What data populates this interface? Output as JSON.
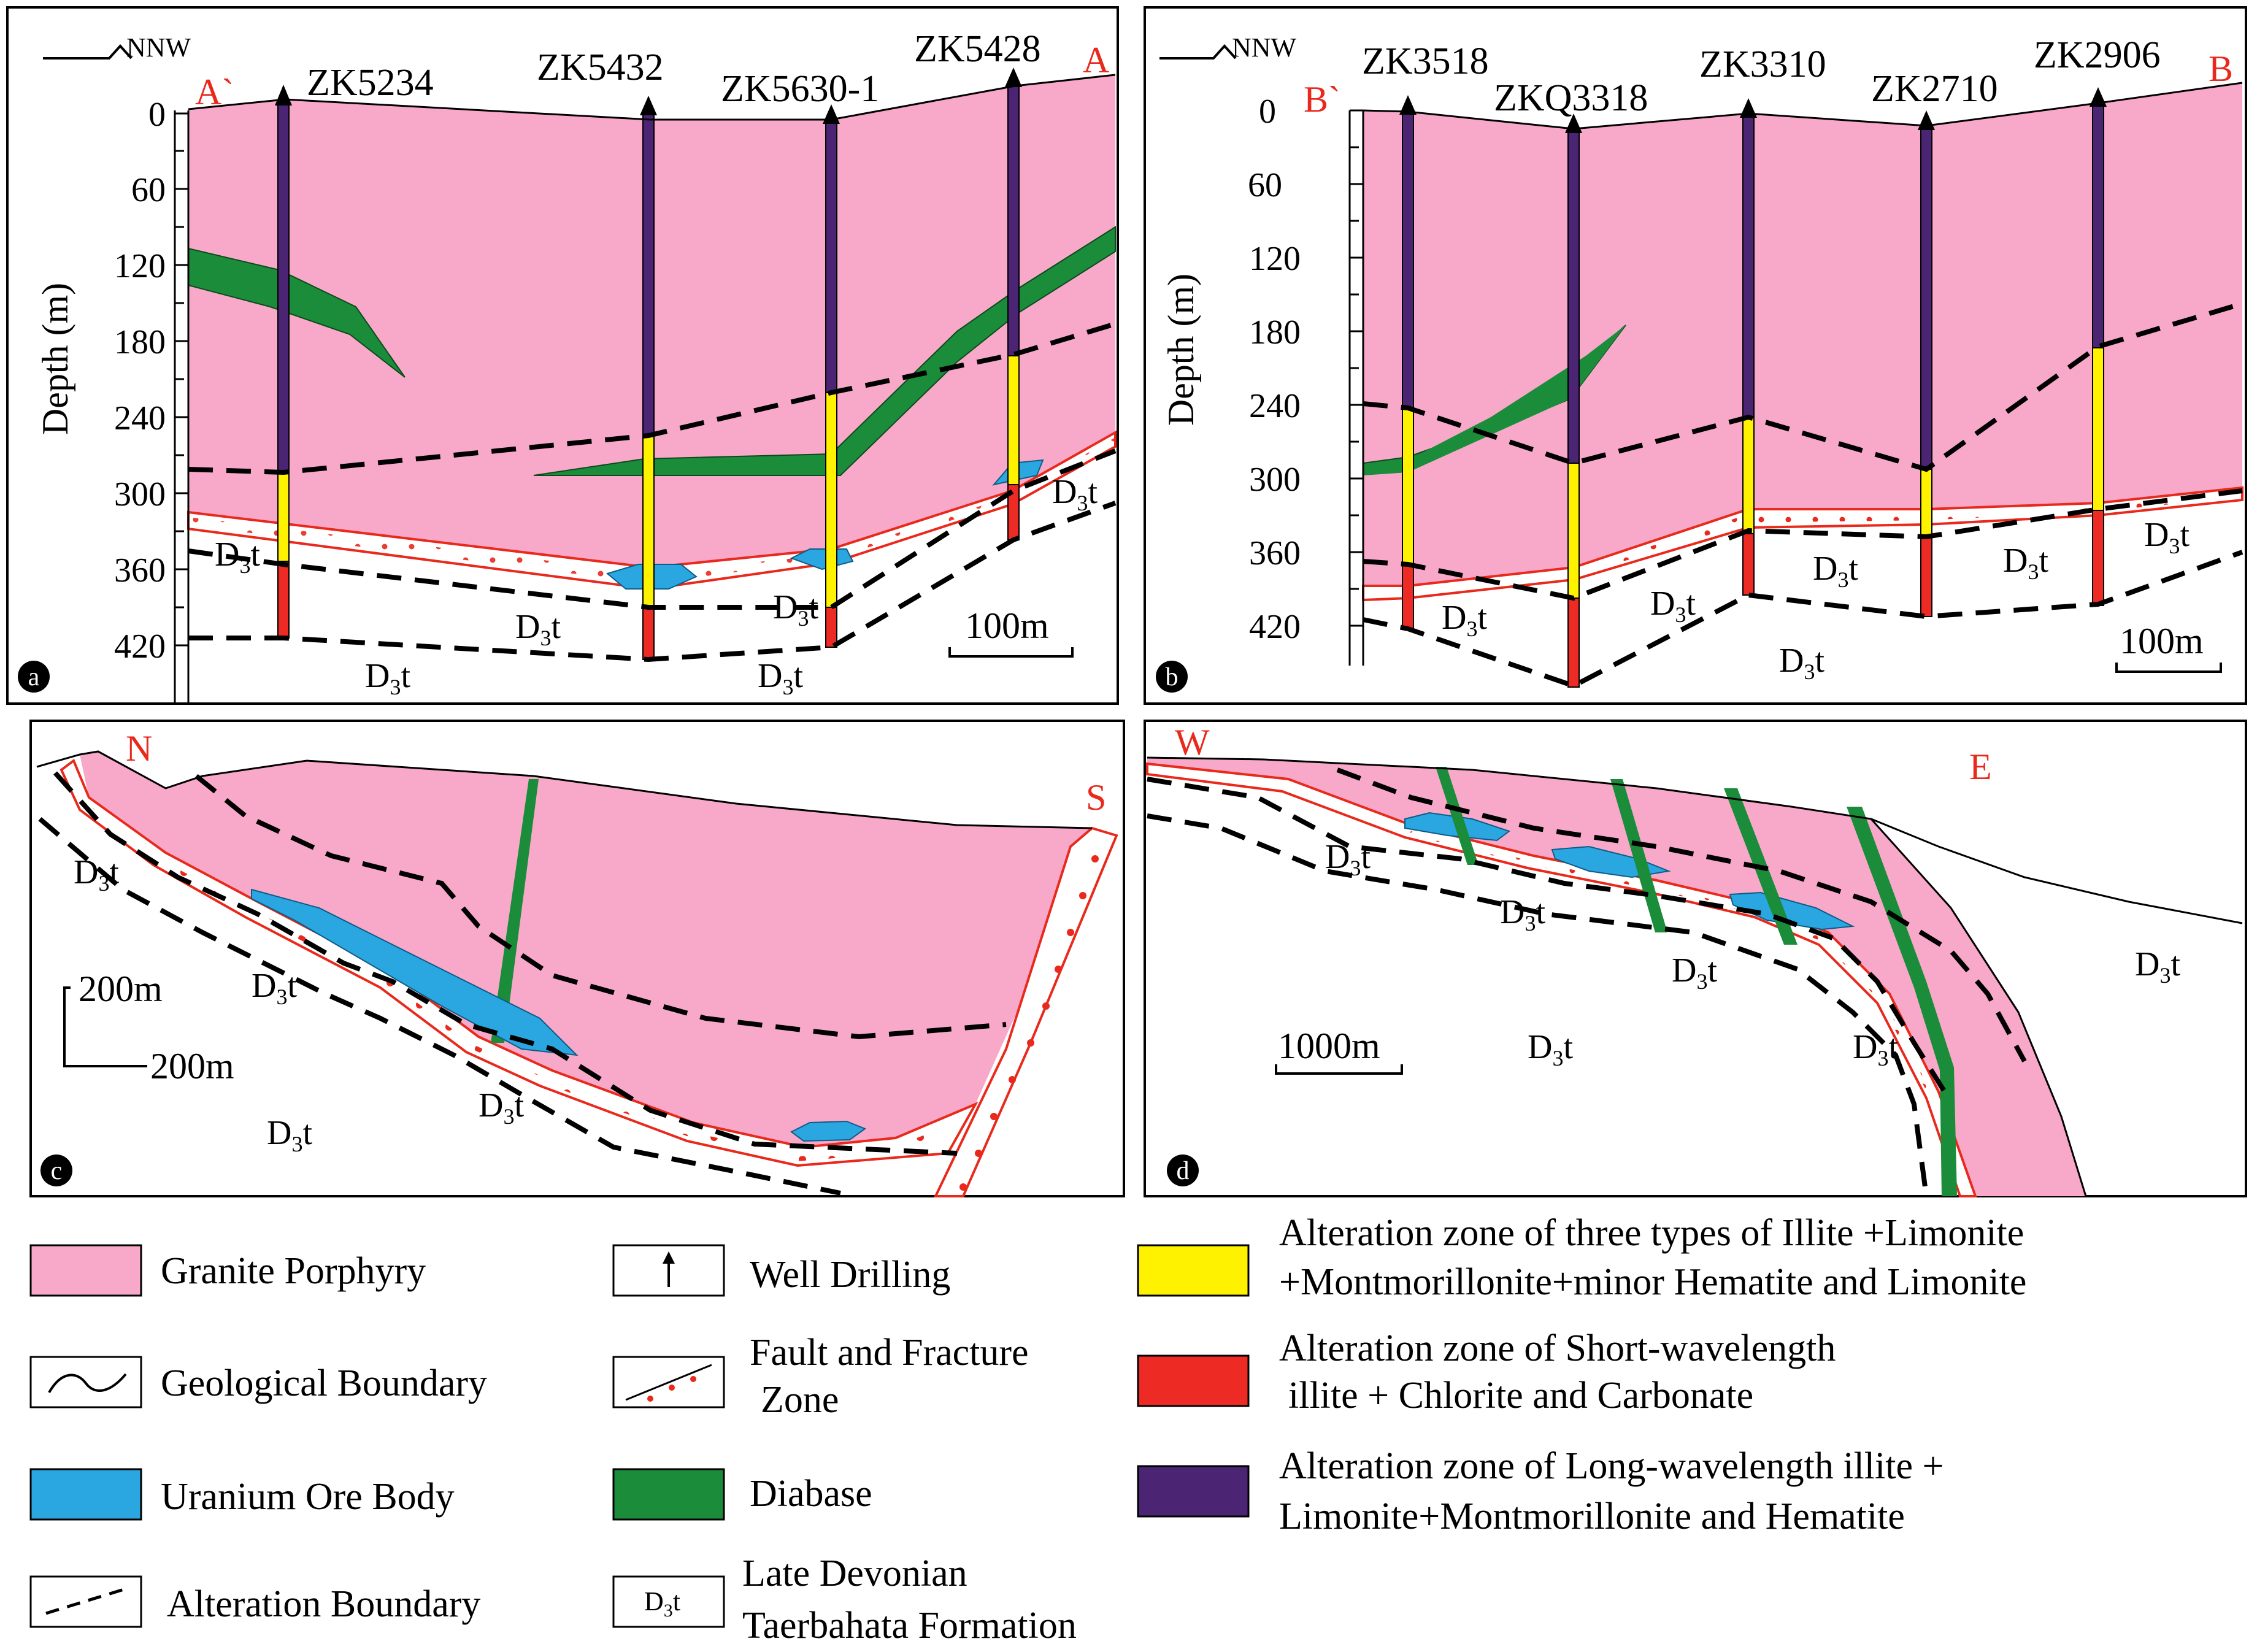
{
  "colors": {
    "granite": "#f8a8c8",
    "diabase": "#1a8c3a",
    "uranium": "#2aa6e0",
    "yellow": "#fff200",
    "red_zone": "#ed2a24",
    "purple_zone": "#4b2574",
    "fault_red": "#e8291c"
  },
  "panel_a": {
    "badge": "a",
    "orientation": "NNW",
    "start_label": "A`",
    "end_label": "A",
    "axis_title": "Depth (m)",
    "ticks": [
      "0",
      "60",
      "120",
      "180",
      "240",
      "300",
      "360",
      "420"
    ],
    "wells": [
      "ZK5234",
      "ZK5432",
      "ZK5630-1",
      "ZK5428"
    ],
    "scale": "100m",
    "formation": "D",
    "formation_sub": "3",
    "formation_suffix": "t"
  },
  "panel_b": {
    "badge": "b",
    "orientation": "NNW",
    "start_label": "B`",
    "end_label": "B",
    "axis_title": "Depth (m)",
    "ticks": [
      "0",
      "60",
      "120",
      "180",
      "240",
      "300",
      "360",
      "420"
    ],
    "wells": [
      "ZK3518",
      "ZKQ3318",
      "ZK3310",
      "ZK2710",
      "ZK2906"
    ],
    "scale": "100m"
  },
  "panel_c": {
    "badge": "c",
    "start_label": "N",
    "end_label": "S",
    "scale_v": "200m",
    "scale_h": "200m"
  },
  "panel_d": {
    "badge": "d",
    "start_label": "W",
    "end_label": "E",
    "scale": "1000m"
  },
  "legend": {
    "granite": "Granite Porphyry",
    "geo_boundary": "Geological Boundary",
    "uranium": "Uranium Ore Body",
    "alteration_boundary": "Alteration Boundary",
    "well": "Well Drilling",
    "fault_1": "Fault and Fracture",
    "fault_2": "Zone",
    "diabase": "Diabase",
    "d3t_line1": "Late Devonian",
    "d3t_line2": "Taerbahata Formation",
    "yellow_1": "Alteration zone of three types of Illite +Limonite",
    "yellow_2": "+Montmorillonite+minor Hematite and Limonite",
    "red_1": "Alteration zone  of  Short-wavelength",
    "red_2": "illite + Chlorite  and  Carbonate",
    "purple_1": "Alteration zone  of  Long-wavelength illite +",
    "purple_2": "Limonite+Montmorillonite and  Hematite"
  }
}
